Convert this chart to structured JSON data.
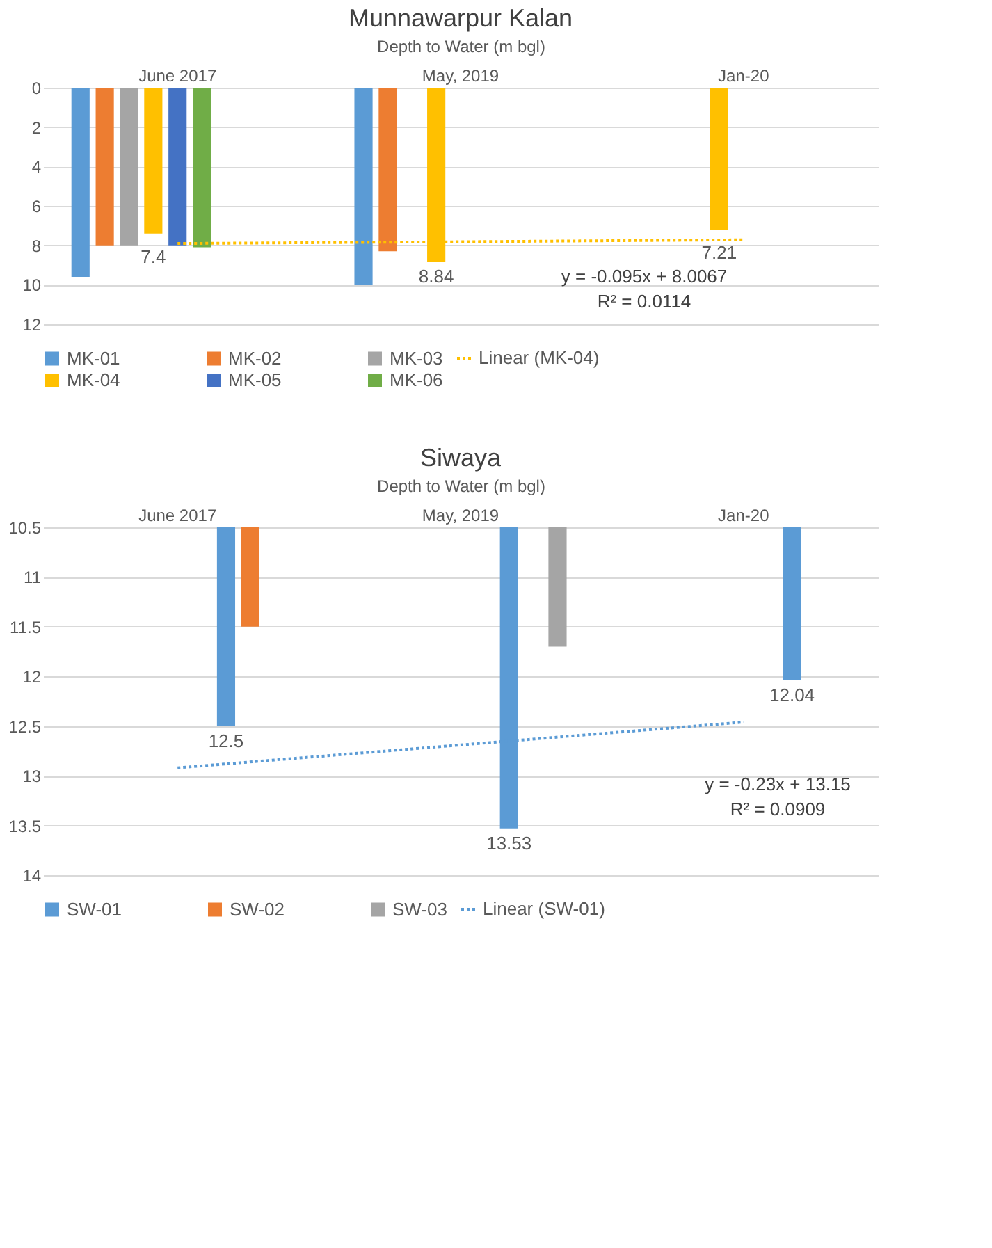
{
  "chart_data": [
    {
      "type": "bar",
      "title": "Munnawarpur Kalan",
      "xlabel": "Depth to Water (m bgl)",
      "categories": [
        "June 2017",
        "May, 2019",
        "Jan-20"
      ],
      "series": [
        {
          "name": "MK-01",
          "color": "#5b9bd5",
          "values": [
            9.6,
            10,
            null
          ]
        },
        {
          "name": "MK-02",
          "color": "#ed7d31",
          "values": [
            8,
            8.3,
            null
          ]
        },
        {
          "name": "MK-03",
          "color": "#a5a5a5",
          "values": [
            8,
            null,
            null
          ]
        },
        {
          "name": "MK-04",
          "color": "#ffc000",
          "values": [
            7.4,
            8.84,
            7.21
          ],
          "value_labels": [
            "7.4",
            "8.84",
            "7.21"
          ]
        },
        {
          "name": "MK-05",
          "color": "#4472c4",
          "values": [
            8,
            null,
            null
          ]
        },
        {
          "name": "MK-06",
          "color": "#70ad47",
          "values": [
            8.1,
            null,
            null
          ]
        },
        {
          "name": "Linear (MK-04)",
          "type": "line",
          "line_style": "dotted",
          "color": "#ffc000",
          "values": [
            7.91,
            7.82,
            7.72
          ]
        }
      ],
      "ylim": [
        12,
        0
      ],
      "yticks": [
        0,
        2,
        4,
        6,
        8,
        10,
        12
      ],
      "grid": "y",
      "legend": "bottom",
      "annotations": [
        "y = -0.095x + 8.0067",
        "R² = 0.0114"
      ]
    },
    {
      "type": "bar",
      "title": "Siwaya",
      "xlabel": "Depth to Water (m bgl)",
      "categories": [
        "June 2017",
        "May, 2019",
        "Jan-20"
      ],
      "series": [
        {
          "name": "SW-01",
          "color": "#5b9bd5",
          "values": [
            12.5,
            13.53,
            12.04
          ],
          "value_labels": [
            "12.5",
            "13.53",
            "12.04"
          ]
        },
        {
          "name": "SW-02",
          "color": "#ed7d31",
          "values": [
            11.5,
            null,
            null
          ]
        },
        {
          "name": "SW-03",
          "color": "#a5a5a5",
          "values": [
            null,
            11.7,
            null
          ]
        },
        {
          "name": "Linear (SW-01)",
          "type": "line",
          "line_style": "dotted",
          "color": "#5b9bd5",
          "values": [
            12.92,
            12.69,
            12.46
          ]
        }
      ],
      "ylim": [
        14,
        10.5
      ],
      "yticks": [
        10.5,
        11,
        11.5,
        12,
        12.5,
        13,
        13.5,
        14
      ],
      "grid": "y",
      "legend": "bottom",
      "annotations": [
        "y = -0.23x + 13.15",
        "R² = 0.0909"
      ]
    }
  ]
}
